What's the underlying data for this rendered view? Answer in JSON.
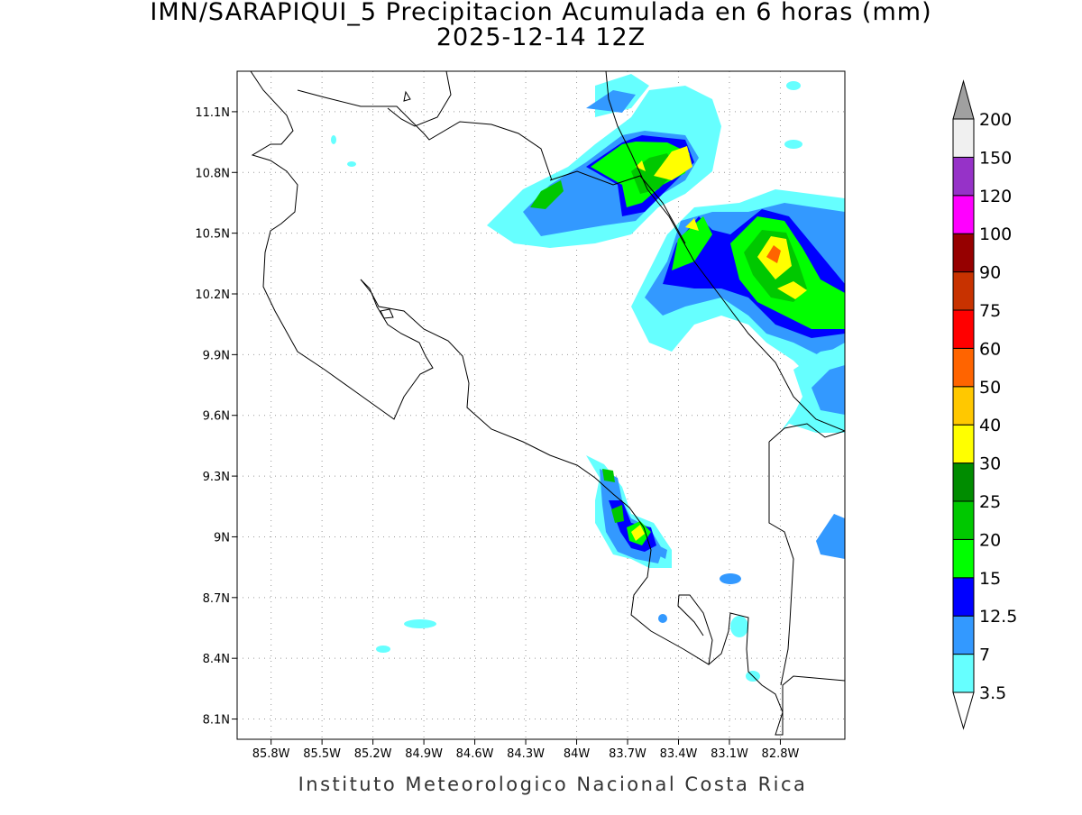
{
  "chart_data": {
    "type": "map",
    "title": "IMN/SARAPIQUI_5 Precipitacion Acumulada en 6 horas (mm)",
    "subtitle": "2025-12-14 12Z",
    "footer": "Instituto Meteorologico Nacional Costa Rica",
    "xlim": [
      -86.0,
      -82.42
    ],
    "ylim": [
      8.0,
      11.3
    ],
    "xticks": [
      {
        "value": -85.8,
        "label": "85.8W"
      },
      {
        "value": -85.5,
        "label": "85.5W"
      },
      {
        "value": -85.2,
        "label": "85.2W"
      },
      {
        "value": -84.9,
        "label": "84.9W"
      },
      {
        "value": -84.6,
        "label": "84.6W"
      },
      {
        "value": -84.3,
        "label": "84.3W"
      },
      {
        "value": -84.0,
        "label": "84W"
      },
      {
        "value": -83.7,
        "label": "83.7W"
      },
      {
        "value": -83.4,
        "label": "83.4W"
      },
      {
        "value": -83.1,
        "label": "83.1W"
      },
      {
        "value": -82.8,
        "label": "82.8W"
      }
    ],
    "yticks": [
      {
        "value": 8.1,
        "label": "8.1N"
      },
      {
        "value": 8.4,
        "label": "8.4N"
      },
      {
        "value": 8.7,
        "label": "8.7N"
      },
      {
        "value": 9.0,
        "label": "9N"
      },
      {
        "value": 9.3,
        "label": "9.3N"
      },
      {
        "value": 9.6,
        "label": "9.6N"
      },
      {
        "value": 9.9,
        "label": "9.9N"
      },
      {
        "value": 10.2,
        "label": "10.2N"
      },
      {
        "value": 10.5,
        "label": "10.5N"
      },
      {
        "value": 10.8,
        "label": "10.8N"
      },
      {
        "value": 11.1,
        "label": "11.1N"
      }
    ],
    "grid": true,
    "colorbar": {
      "levels": [
        3.5,
        7,
        12.5,
        15,
        20,
        25,
        30,
        40,
        50,
        60,
        75,
        90,
        100,
        120,
        150,
        200
      ],
      "colors": [
        "#66ffff",
        "#3399ff",
        "#0000ff",
        "#00ff00",
        "#00c800",
        "#008c00",
        "#ffff00",
        "#ffc800",
        "#ff6400",
        "#ff0000",
        "#c83200",
        "#960000",
        "#ff00ff",
        "#9632c8",
        "#f0f0f0"
      ],
      "under_color": "#ffffff",
      "over_color": "#a0a0a0"
    }
  }
}
